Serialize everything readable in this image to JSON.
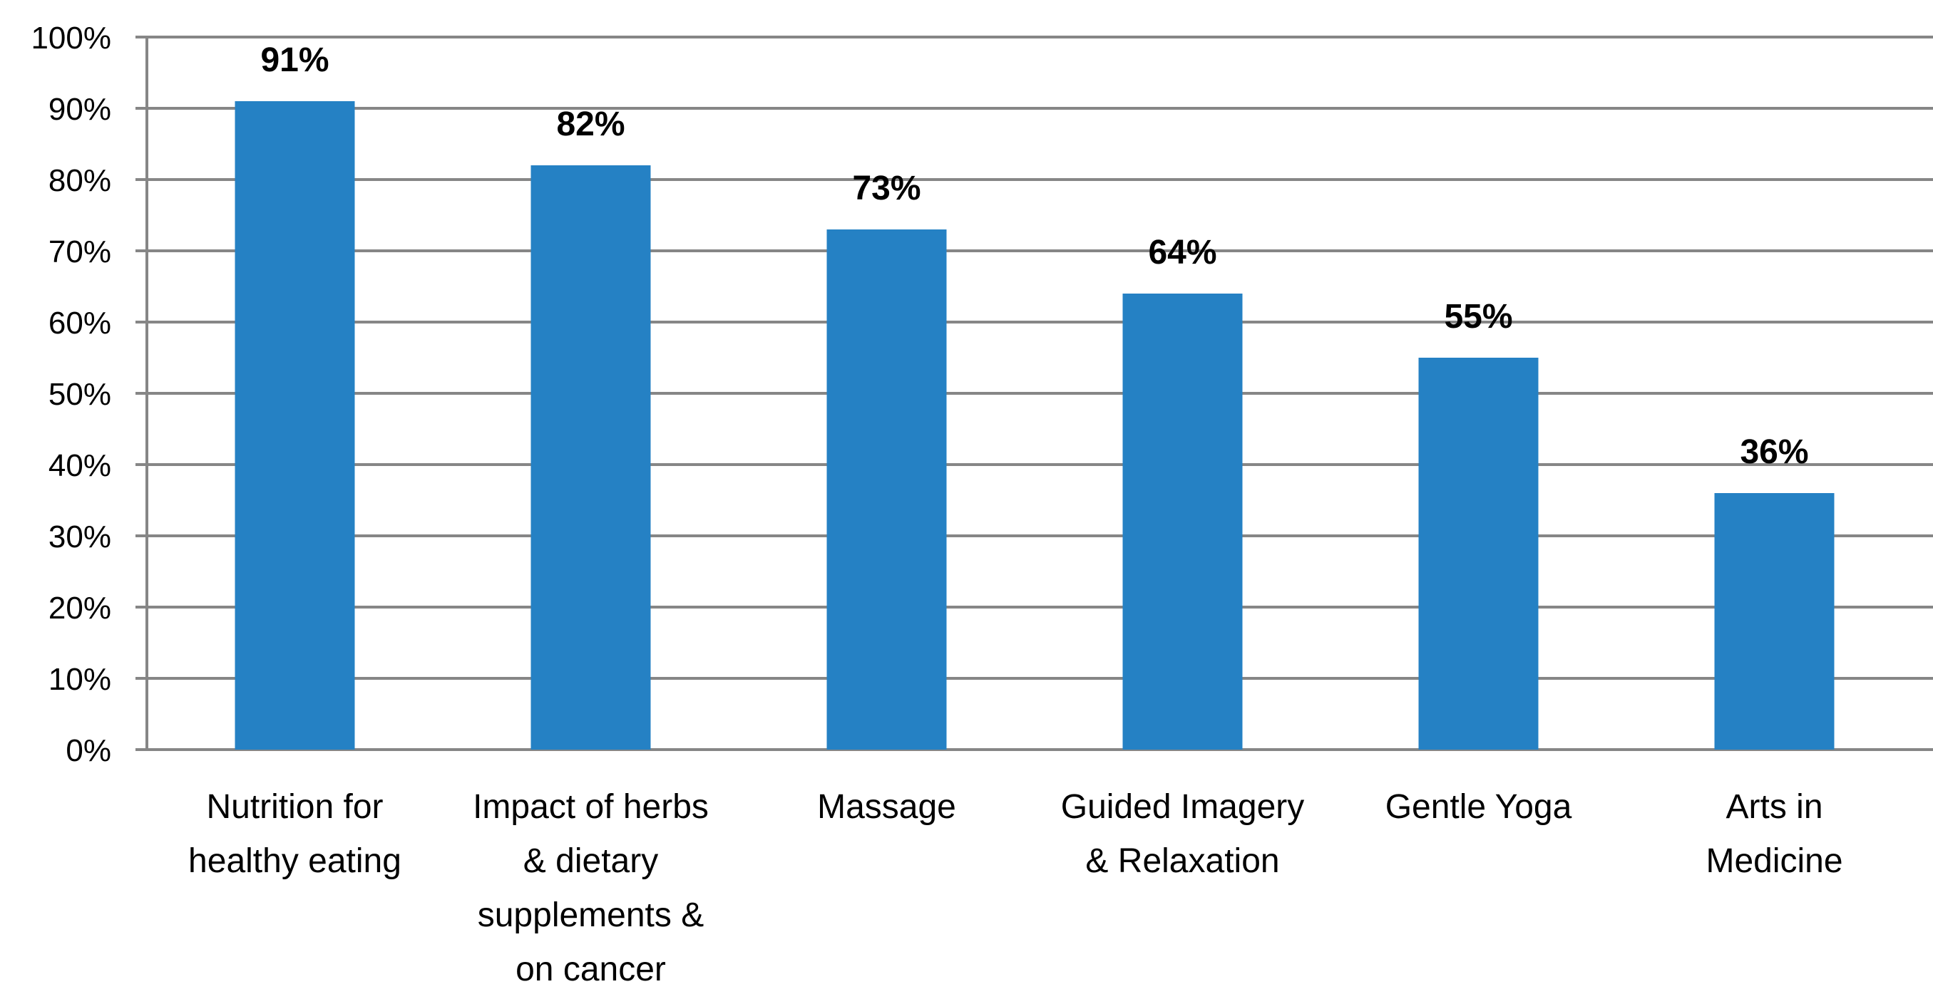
{
  "chart_data": {
    "type": "bar",
    "categories": [
      [
        "Nutrition for",
        "healthy eating"
      ],
      [
        "Impact of herbs",
        "& dietary",
        "supplements &",
        "on cancer"
      ],
      [
        "Massage"
      ],
      [
        "Guided Imagery",
        "& Relaxation"
      ],
      [
        "Gentle Yoga"
      ],
      [
        "Arts in",
        "Medicine"
      ]
    ],
    "values": [
      91,
      82,
      73,
      64,
      55,
      36
    ],
    "data_labels": [
      "91%",
      "82%",
      "73%",
      "64%",
      "55%",
      "36%"
    ],
    "y_ticks": [
      0,
      10,
      20,
      30,
      40,
      50,
      60,
      70,
      80,
      90,
      100
    ],
    "y_tick_labels": [
      "0%",
      "10%",
      "20%",
      "30%",
      "40%",
      "50%",
      "60%",
      "70%",
      "80%",
      "90%",
      "100%"
    ],
    "ylim": [
      0,
      100
    ],
    "grid": true,
    "legend": "none",
    "title": "",
    "xlabel": "",
    "ylabel": "",
    "colors": {
      "bar": "#2581C4",
      "grid": "#868686",
      "axis": "#868686",
      "text": "#000000"
    }
  }
}
